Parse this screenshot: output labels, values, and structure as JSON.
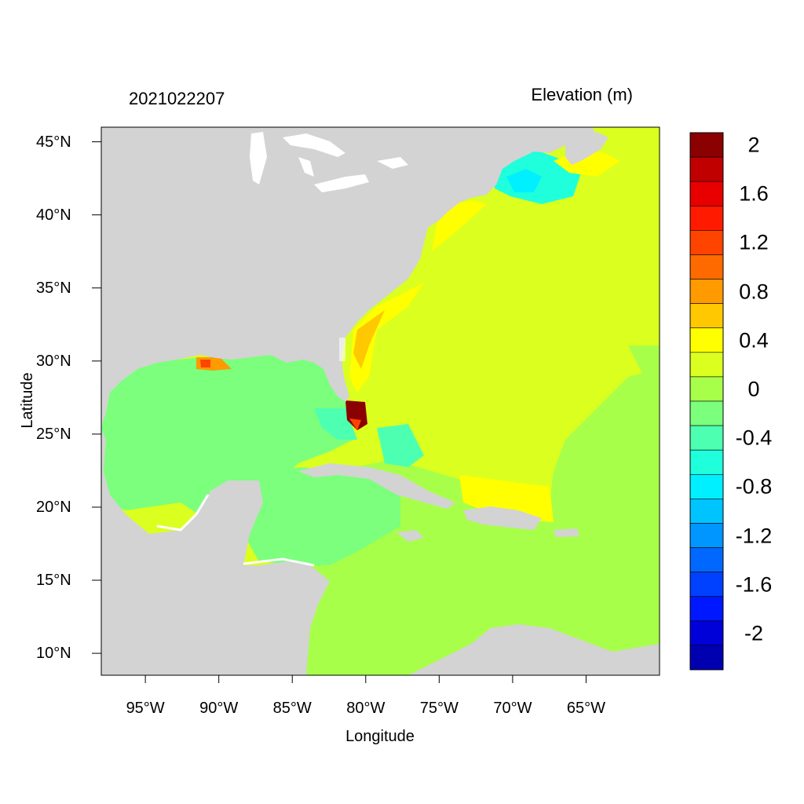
{
  "title": {
    "date": "2021022207",
    "variable": "Elevation (m)"
  },
  "axes": {
    "xlabel": "Longitude",
    "ylabel": "Latitude",
    "xlim": [
      -98,
      -60
    ],
    "ylim": [
      8.5,
      46
    ],
    "xticks": [
      {
        "value": -95,
        "label": "95°W"
      },
      {
        "value": -90,
        "label": "90°W"
      },
      {
        "value": -85,
        "label": "85°W"
      },
      {
        "value": -80,
        "label": "80°W"
      },
      {
        "value": -75,
        "label": "75°W"
      },
      {
        "value": -70,
        "label": "70°W"
      },
      {
        "value": -65,
        "label": "65°W"
      }
    ],
    "yticks": [
      {
        "value": 45,
        "label": "45°N"
      },
      {
        "value": 40,
        "label": "40°N"
      },
      {
        "value": 35,
        "label": "35°N"
      },
      {
        "value": 30,
        "label": "30°N"
      },
      {
        "value": 25,
        "label": "25°N"
      },
      {
        "value": 20,
        "label": "20°N"
      },
      {
        "value": 15,
        "label": "15°N"
      },
      {
        "value": 10,
        "label": "10°N"
      }
    ]
  },
  "colorbar": {
    "levels_top_to_bottom": [
      {
        "range": [
          2.0,
          2.2
        ],
        "color": "#8b0000"
      },
      {
        "range": [
          1.8,
          2.0
        ],
        "color": "#c00000"
      },
      {
        "range": [
          1.6,
          1.8
        ],
        "color": "#e80000"
      },
      {
        "range": [
          1.4,
          1.6
        ],
        "color": "#ff1a00"
      },
      {
        "range": [
          1.2,
          1.4
        ],
        "color": "#ff4400"
      },
      {
        "range": [
          1.0,
          1.2
        ],
        "color": "#ff6a00"
      },
      {
        "range": [
          0.8,
          1.0
        ],
        "color": "#ff9a00"
      },
      {
        "range": [
          0.6,
          0.8
        ],
        "color": "#ffc800"
      },
      {
        "range": [
          0.4,
          0.6
        ],
        "color": "#ffff00"
      },
      {
        "range": [
          0.2,
          0.4
        ],
        "color": "#dbff1f"
      },
      {
        "range": [
          0.0,
          0.2
        ],
        "color": "#a8ff4a"
      },
      {
        "range": [
          -0.2,
          0.0
        ],
        "color": "#7cff7c"
      },
      {
        "range": [
          -0.4,
          -0.2
        ],
        "color": "#4dffb0"
      },
      {
        "range": [
          -0.6,
          -0.4
        ],
        "color": "#1fffdc"
      },
      {
        "range": [
          -0.8,
          -0.6
        ],
        "color": "#00f0ff"
      },
      {
        "range": [
          -1.0,
          -0.8
        ],
        "color": "#00c4ff"
      },
      {
        "range": [
          -1.2,
          -1.0
        ],
        "color": "#0096ff"
      },
      {
        "range": [
          -1.4,
          -1.2
        ],
        "color": "#0068ff"
      },
      {
        "range": [
          -1.6,
          -1.4
        ],
        "color": "#0040ff"
      },
      {
        "range": [
          -1.8,
          -1.6
        ],
        "color": "#0018ff"
      },
      {
        "range": [
          -2.0,
          -1.8
        ],
        "color": "#0000d8"
      },
      {
        "range": [
          -2.2,
          -2.0
        ],
        "color": "#0000b0"
      }
    ],
    "labels": [
      {
        "value": 2,
        "label": "2"
      },
      {
        "value": 1.6,
        "label": "1.6"
      },
      {
        "value": 1.2,
        "label": "1.2"
      },
      {
        "value": 0.8,
        "label": "0.8"
      },
      {
        "value": 0.4,
        "label": "0.4"
      },
      {
        "value": 0,
        "label": "0"
      },
      {
        "value": -0.4,
        "label": "-0.4"
      },
      {
        "value": -0.8,
        "label": "-0.8"
      },
      {
        "value": -1.2,
        "label": "-1.2"
      },
      {
        "value": -1.6,
        "label": "-1.6"
      },
      {
        "value": -2,
        "label": "-2"
      }
    ],
    "range": [
      -2.2,
      2.2
    ]
  },
  "map_colors": {
    "land": "#d3d3d3",
    "open_atlantic": "#dbff1f",
    "gulf_of_mexico": "#7cff7c",
    "caribbean": "#a8ff4a",
    "florida_straits": "#4dffb0",
    "gulf_of_maine": "#1fffdc",
    "coastal_high": "#ffc800",
    "extreme": "#8b0000"
  }
}
